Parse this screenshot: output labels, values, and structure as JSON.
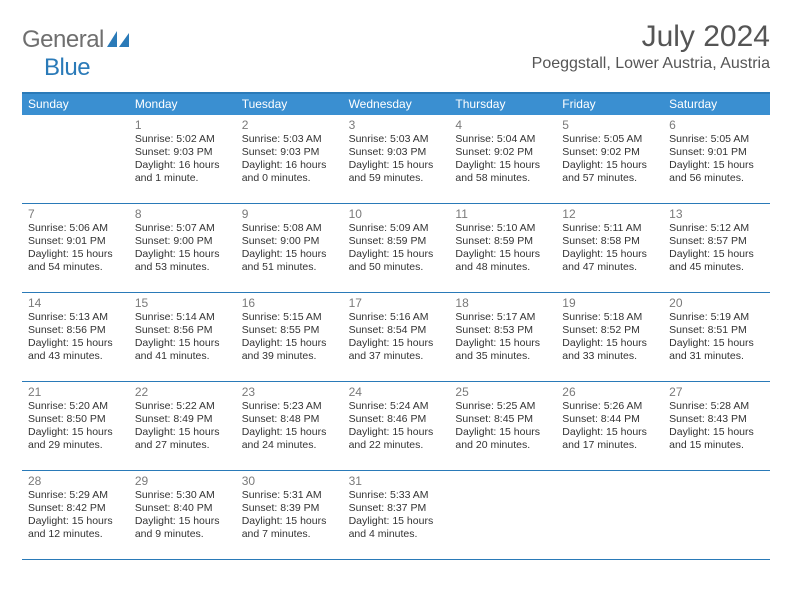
{
  "logo": {
    "part1": "General",
    "part2": "Blue"
  },
  "title": "July 2024",
  "subtitle": "Poeggstall, Lower Austria, Austria",
  "colors": {
    "header_bg": "#3a8fd1",
    "header_text": "#ffffff",
    "rule": "#2a7ab8",
    "logo_gray": "#6f6f6f",
    "logo_blue": "#2a7ab8",
    "title_color": "#555555",
    "text": "#333333",
    "daynum": "#7a7a7a",
    "page_bg": "#ffffff"
  },
  "dow": [
    "Sunday",
    "Monday",
    "Tuesday",
    "Wednesday",
    "Thursday",
    "Friday",
    "Saturday"
  ],
  "weeks": [
    [
      null,
      {
        "n": "1",
        "sr": "Sunrise: 5:02 AM",
        "ss": "Sunset: 9:03 PM",
        "d1": "Daylight: 16 hours",
        "d2": "and 1 minute."
      },
      {
        "n": "2",
        "sr": "Sunrise: 5:03 AM",
        "ss": "Sunset: 9:03 PM",
        "d1": "Daylight: 16 hours",
        "d2": "and 0 minutes."
      },
      {
        "n": "3",
        "sr": "Sunrise: 5:03 AM",
        "ss": "Sunset: 9:03 PM",
        "d1": "Daylight: 15 hours",
        "d2": "and 59 minutes."
      },
      {
        "n": "4",
        "sr": "Sunrise: 5:04 AM",
        "ss": "Sunset: 9:02 PM",
        "d1": "Daylight: 15 hours",
        "d2": "and 58 minutes."
      },
      {
        "n": "5",
        "sr": "Sunrise: 5:05 AM",
        "ss": "Sunset: 9:02 PM",
        "d1": "Daylight: 15 hours",
        "d2": "and 57 minutes."
      },
      {
        "n": "6",
        "sr": "Sunrise: 5:05 AM",
        "ss": "Sunset: 9:01 PM",
        "d1": "Daylight: 15 hours",
        "d2": "and 56 minutes."
      }
    ],
    [
      {
        "n": "7",
        "sr": "Sunrise: 5:06 AM",
        "ss": "Sunset: 9:01 PM",
        "d1": "Daylight: 15 hours",
        "d2": "and 54 minutes."
      },
      {
        "n": "8",
        "sr": "Sunrise: 5:07 AM",
        "ss": "Sunset: 9:00 PM",
        "d1": "Daylight: 15 hours",
        "d2": "and 53 minutes."
      },
      {
        "n": "9",
        "sr": "Sunrise: 5:08 AM",
        "ss": "Sunset: 9:00 PM",
        "d1": "Daylight: 15 hours",
        "d2": "and 51 minutes."
      },
      {
        "n": "10",
        "sr": "Sunrise: 5:09 AM",
        "ss": "Sunset: 8:59 PM",
        "d1": "Daylight: 15 hours",
        "d2": "and 50 minutes."
      },
      {
        "n": "11",
        "sr": "Sunrise: 5:10 AM",
        "ss": "Sunset: 8:59 PM",
        "d1": "Daylight: 15 hours",
        "d2": "and 48 minutes."
      },
      {
        "n": "12",
        "sr": "Sunrise: 5:11 AM",
        "ss": "Sunset: 8:58 PM",
        "d1": "Daylight: 15 hours",
        "d2": "and 47 minutes."
      },
      {
        "n": "13",
        "sr": "Sunrise: 5:12 AM",
        "ss": "Sunset: 8:57 PM",
        "d1": "Daylight: 15 hours",
        "d2": "and 45 minutes."
      }
    ],
    [
      {
        "n": "14",
        "sr": "Sunrise: 5:13 AM",
        "ss": "Sunset: 8:56 PM",
        "d1": "Daylight: 15 hours",
        "d2": "and 43 minutes."
      },
      {
        "n": "15",
        "sr": "Sunrise: 5:14 AM",
        "ss": "Sunset: 8:56 PM",
        "d1": "Daylight: 15 hours",
        "d2": "and 41 minutes."
      },
      {
        "n": "16",
        "sr": "Sunrise: 5:15 AM",
        "ss": "Sunset: 8:55 PM",
        "d1": "Daylight: 15 hours",
        "d2": "and 39 minutes."
      },
      {
        "n": "17",
        "sr": "Sunrise: 5:16 AM",
        "ss": "Sunset: 8:54 PM",
        "d1": "Daylight: 15 hours",
        "d2": "and 37 minutes."
      },
      {
        "n": "18",
        "sr": "Sunrise: 5:17 AM",
        "ss": "Sunset: 8:53 PM",
        "d1": "Daylight: 15 hours",
        "d2": "and 35 minutes."
      },
      {
        "n": "19",
        "sr": "Sunrise: 5:18 AM",
        "ss": "Sunset: 8:52 PM",
        "d1": "Daylight: 15 hours",
        "d2": "and 33 minutes."
      },
      {
        "n": "20",
        "sr": "Sunrise: 5:19 AM",
        "ss": "Sunset: 8:51 PM",
        "d1": "Daylight: 15 hours",
        "d2": "and 31 minutes."
      }
    ],
    [
      {
        "n": "21",
        "sr": "Sunrise: 5:20 AM",
        "ss": "Sunset: 8:50 PM",
        "d1": "Daylight: 15 hours",
        "d2": "and 29 minutes."
      },
      {
        "n": "22",
        "sr": "Sunrise: 5:22 AM",
        "ss": "Sunset: 8:49 PM",
        "d1": "Daylight: 15 hours",
        "d2": "and 27 minutes."
      },
      {
        "n": "23",
        "sr": "Sunrise: 5:23 AM",
        "ss": "Sunset: 8:48 PM",
        "d1": "Daylight: 15 hours",
        "d2": "and 24 minutes."
      },
      {
        "n": "24",
        "sr": "Sunrise: 5:24 AM",
        "ss": "Sunset: 8:46 PM",
        "d1": "Daylight: 15 hours",
        "d2": "and 22 minutes."
      },
      {
        "n": "25",
        "sr": "Sunrise: 5:25 AM",
        "ss": "Sunset: 8:45 PM",
        "d1": "Daylight: 15 hours",
        "d2": "and 20 minutes."
      },
      {
        "n": "26",
        "sr": "Sunrise: 5:26 AM",
        "ss": "Sunset: 8:44 PM",
        "d1": "Daylight: 15 hours",
        "d2": "and 17 minutes."
      },
      {
        "n": "27",
        "sr": "Sunrise: 5:28 AM",
        "ss": "Sunset: 8:43 PM",
        "d1": "Daylight: 15 hours",
        "d2": "and 15 minutes."
      }
    ],
    [
      {
        "n": "28",
        "sr": "Sunrise: 5:29 AM",
        "ss": "Sunset: 8:42 PM",
        "d1": "Daylight: 15 hours",
        "d2": "and 12 minutes."
      },
      {
        "n": "29",
        "sr": "Sunrise: 5:30 AM",
        "ss": "Sunset: 8:40 PM",
        "d1": "Daylight: 15 hours",
        "d2": "and 9 minutes."
      },
      {
        "n": "30",
        "sr": "Sunrise: 5:31 AM",
        "ss": "Sunset: 8:39 PM",
        "d1": "Daylight: 15 hours",
        "d2": "and 7 minutes."
      },
      {
        "n": "31",
        "sr": "Sunrise: 5:33 AM",
        "ss": "Sunset: 8:37 PM",
        "d1": "Daylight: 15 hours",
        "d2": "and 4 minutes."
      },
      null,
      null,
      null
    ]
  ]
}
